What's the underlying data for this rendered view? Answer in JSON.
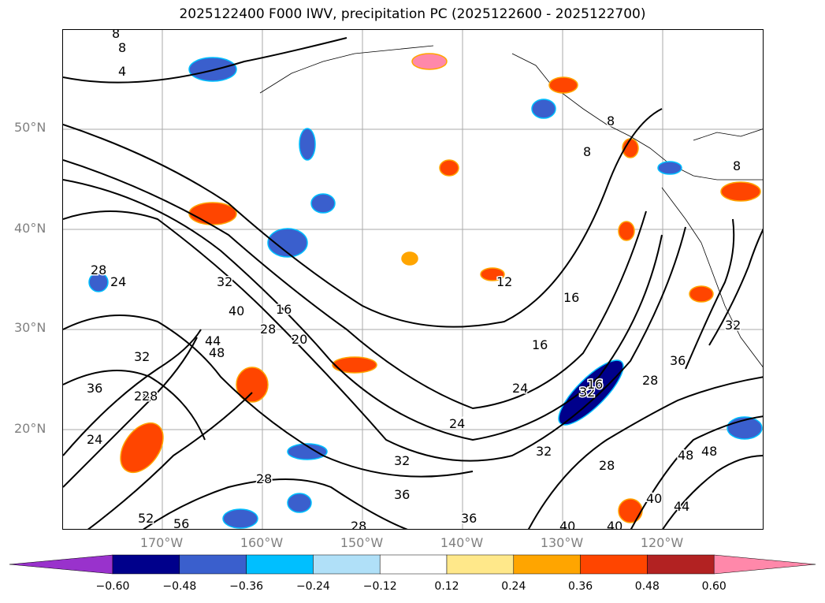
{
  "title": "2025122400 F000 IWV, precipitation PC (2025122600 - 2025122700)",
  "map": {
    "lat_labels": [
      "50°N",
      "40°N",
      "30°N",
      "20°N"
    ],
    "lon_labels": [
      "170°W",
      "160°W",
      "150°W",
      "140°W",
      "130°W",
      "120°W"
    ],
    "contour_labels": [
      "8",
      "8",
      "4",
      "8",
      "8",
      "8",
      "24",
      "28",
      "32",
      "40",
      "16",
      "28",
      "20",
      "44",
      "48",
      "12",
      "16",
      "16",
      "32",
      "28",
      "24",
      "28",
      "36",
      "32",
      "24",
      "16",
      "28",
      "36",
      "32",
      "48",
      "52",
      "32",
      "36",
      "28",
      "32",
      "28",
      "40",
      "44",
      "48",
      "28",
      "40",
      "56",
      "24",
      "36",
      "40"
    ]
  },
  "colorbar": {
    "ticks": [
      "−0.60",
      "−0.48",
      "−0.36",
      "−0.24",
      "−0.12",
      "0.12",
      "0.24",
      "0.36",
      "0.48",
      "0.60"
    ],
    "colors": [
      "#9932cc",
      "#00008b",
      "#3a5fcd",
      "#00bfff",
      "#b0e0f8",
      "#ffffff",
      "#ffe88a",
      "#ffa500",
      "#ff4500",
      "#b22222",
      "#ff88aa"
    ],
    "pos_colors": {
      "light": "#ffe88a",
      "orange": "#ffa500",
      "redorange": "#ff4500",
      "darkred": "#b22222",
      "pink": "#ff88aa"
    },
    "neg_colors": {
      "paleblue": "#b0e0f8",
      "skyblue": "#00bfff",
      "blue": "#3a5fcd",
      "navy": "#00008b",
      "purple": "#9932cc"
    }
  }
}
